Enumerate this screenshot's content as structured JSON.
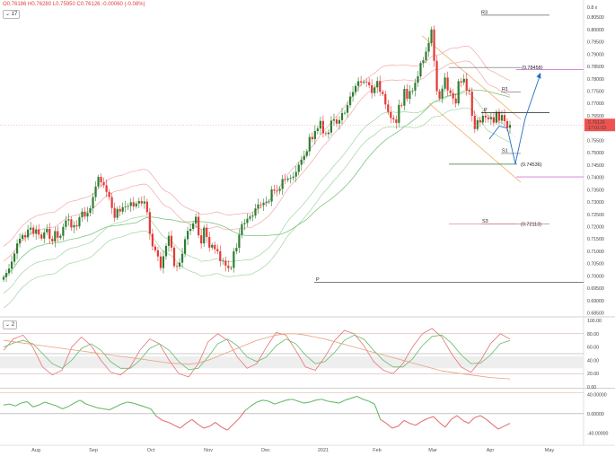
{
  "header": {
    "open_label": "O",
    "open": "0.76186",
    "high_label": "H",
    "high": "0.76280",
    "low_label": "L",
    "low": "0.75950",
    "close_label": "C",
    "close": "0.76126",
    "change": "-0.00060 (-0.08%)",
    "indicator_badge": "17",
    "indicator2_badge": "2"
  },
  "current_price": {
    "value": "0.76126",
    "countdown": "17:01:03"
  },
  "colors": {
    "up": "#26a69a",
    "down": "#ef5350",
    "bull_candle": "#2e7d32",
    "bear_candle": "#e53935",
    "env_outer": "#f4a7a7",
    "env_inner": "#9fd59f",
    "ema": "#7fc47f",
    "channel": "#f0b070",
    "projection": "#1e6fc4",
    "pivot_line": "#222222",
    "level_line": "#d08080",
    "osc_fast": "#e57373",
    "osc_slow": "#66bb6a",
    "momentum_up": "#66bb6a",
    "momentum_down": "#e57373"
  },
  "chart_data": [
    {
      "type": "candlestick",
      "title": "",
      "x_labels": [
        "Aug",
        "Sep",
        "Oct",
        "Nov",
        "Dec",
        "2021",
        "Feb",
        "Mar",
        "Apr",
        "May"
      ],
      "y_ticks": [
        "0.80500",
        "0.80000",
        "0.79500",
        "0.79000",
        "0.78500",
        "0.78000",
        "0.77500",
        "0.77000",
        "0.76500",
        "0.76000",
        "0.75500",
        "0.75000",
        "0.74500",
        "0.74000",
        "0.73500",
        "0.73000",
        "0.72500",
        "0.72000",
        "0.71500",
        "0.71000",
        "0.70500",
        "0.70000",
        "0.69500",
        "0.69000",
        "0.68500"
      ],
      "y_axis_label": "0.8 x",
      "ylim": [
        0.6845,
        0.8105
      ],
      "levels": [
        {
          "label": "R3",
          "value": 0.8058
        },
        {
          "label": "(0.78458)",
          "value": 0.78458
        },
        {
          "label": "R1",
          "value": 0.7747
        },
        {
          "label": "P",
          "value": 0.7662
        },
        {
          "label": "S1",
          "value": 0.7497
        },
        {
          "label": "(0.74536)",
          "value": 0.74536
        },
        {
          "label": "(0.72113)",
          "value": 0.72113
        },
        {
          "label": "S3",
          "value": 0.7211
        },
        {
          "label": "P",
          "value": 0.6974
        }
      ],
      "closes": [
        0.6995,
        0.7012,
        0.703,
        0.7058,
        0.7091,
        0.7132,
        0.7151,
        0.7166,
        0.7157,
        0.7188,
        0.7196,
        0.7171,
        0.7189,
        0.7168,
        0.7152,
        0.7177,
        0.7191,
        0.7151,
        0.714,
        0.7182,
        0.7155,
        0.7163,
        0.7199,
        0.7225,
        0.723,
        0.7197,
        0.7206,
        0.7201,
        0.7238,
        0.7261,
        0.7241,
        0.7256,
        0.7275,
        0.732,
        0.7363,
        0.7402,
        0.738,
        0.7368,
        0.7341,
        0.732,
        0.7276,
        0.7236,
        0.7272,
        0.7261,
        0.7279,
        0.7281,
        0.7284,
        0.7299,
        0.7282,
        0.7294,
        0.7304,
        0.7294,
        0.7302,
        0.7259,
        0.7171,
        0.712,
        0.7104,
        0.7079,
        0.7032,
        0.708,
        0.7122,
        0.7163,
        0.7115,
        0.704,
        0.7038,
        0.7054,
        0.709,
        0.7149,
        0.7183,
        0.7191,
        0.7213,
        0.724,
        0.7165,
        0.7132,
        0.7196,
        0.7158,
        0.7115,
        0.7126,
        0.7109,
        0.71,
        0.706,
        0.7062,
        0.7042,
        0.7032,
        0.7033,
        0.71,
        0.7114,
        0.7167,
        0.721,
        0.7215,
        0.7232,
        0.7241,
        0.7245,
        0.7274,
        0.729,
        0.7288,
        0.7297,
        0.7301,
        0.7302,
        0.7351,
        0.7346,
        0.7345,
        0.7353,
        0.7393,
        0.739,
        0.7395,
        0.7398,
        0.7403,
        0.7422,
        0.7451,
        0.7471,
        0.7487,
        0.7506,
        0.7564,
        0.7555,
        0.7588,
        0.7598,
        0.7629,
        0.7579,
        0.7576,
        0.7582,
        0.763,
        0.7635,
        0.7618,
        0.7632,
        0.7661,
        0.7662,
        0.7693,
        0.7728,
        0.7746,
        0.7771,
        0.779,
        0.7785,
        0.7788,
        0.7786,
        0.7774,
        0.7742,
        0.7765,
        0.7791,
        0.7747,
        0.7738,
        0.7696,
        0.7665,
        0.7641,
        0.7635,
        0.7621,
        0.7694,
        0.7691,
        0.7759,
        0.7719,
        0.775,
        0.7752,
        0.7784,
        0.781,
        0.7864,
        0.7875,
        0.791,
        0.7945,
        0.8,
        0.7873,
        0.775,
        0.772,
        0.776,
        0.7805,
        0.7753,
        0.7742,
        0.772,
        0.77,
        0.779,
        0.7785,
        0.78,
        0.7753,
        0.7748,
        0.765,
        0.7596,
        0.7632,
        0.7623,
        0.765,
        0.7643,
        0.7636,
        0.7644,
        0.7622,
        0.7666,
        0.763,
        0.7653,
        0.7628,
        0.7601,
        0.7613
      ]
    },
    {
      "type": "line",
      "title": "",
      "y_ticks": [
        "100.00",
        "80.00",
        "60.00",
        "40.00",
        "20.00",
        "0.00"
      ],
      "ylim": [
        0,
        100
      ],
      "reference_lines": [
        80,
        50,
        20
      ],
      "series": [
        {
          "values": [
            55,
            72,
            78,
            60,
            30,
            18,
            25,
            60,
            75,
            62,
            40,
            22,
            18,
            30,
            55,
            72,
            65,
            40,
            20,
            15,
            35,
            68,
            80,
            70,
            45,
            28,
            35,
            60,
            82,
            78,
            55,
            30,
            25,
            45,
            70,
            85,
            80,
            62,
            38,
            25,
            20,
            35,
            60,
            80,
            88,
            75,
            50,
            30,
            22,
            40,
            65,
            80,
            72
          ]
        },
        {
          "values": [
            60,
            66,
            70,
            65,
            50,
            35,
            28,
            40,
            58,
            65,
            55,
            38,
            28,
            28,
            40,
            58,
            65,
            55,
            38,
            26,
            28,
            45,
            65,
            72,
            62,
            45,
            38,
            45,
            62,
            72,
            65,
            48,
            35,
            38,
            52,
            70,
            78,
            72,
            55,
            40,
            30,
            30,
            42,
            62,
            76,
            78,
            66,
            48,
            35,
            36,
            48,
            65,
            70
          ]
        },
        {
          "values": [
            70,
            68,
            66,
            64,
            62,
            60,
            58,
            56,
            54,
            52,
            50,
            48,
            46,
            44,
            42,
            40,
            38,
            36,
            35,
            34,
            36,
            40,
            46,
            52,
            58,
            64,
            70,
            74,
            78,
            80,
            80,
            78,
            75,
            72,
            68,
            64,
            60,
            56,
            52,
            48,
            44,
            40,
            36,
            32,
            28,
            24,
            22,
            20,
            18,
            16,
            14,
            13,
            12
          ]
        }
      ]
    },
    {
      "type": "area",
      "title": "",
      "y_ticks": [
        "40.00000",
        "0.00000",
        "-40.00000"
      ],
      "ylim": [
        -58,
        50
      ],
      "values": [
        18,
        20,
        16,
        22,
        25,
        14,
        18,
        24,
        20,
        16,
        10,
        15,
        22,
        28,
        20,
        16,
        12,
        10,
        8,
        14,
        20,
        24,
        22,
        18,
        14,
        10,
        -6,
        -14,
        -18,
        -24,
        -30,
        -20,
        -12,
        -22,
        -30,
        -26,
        -18,
        -28,
        -34,
        -22,
        -10,
        6,
        16,
        24,
        28,
        26,
        20,
        24,
        28,
        30,
        26,
        22,
        24,
        28,
        30,
        26,
        24,
        22,
        28,
        32,
        36,
        30,
        26,
        20,
        -12,
        -20,
        -30,
        -26,
        -14,
        -20,
        -24,
        -16,
        -10,
        -6,
        -18,
        -28,
        -12,
        -4,
        -14,
        -20,
        -8,
        -4,
        -12,
        -22,
        -32,
        -26,
        -20
      ]
    }
  ]
}
